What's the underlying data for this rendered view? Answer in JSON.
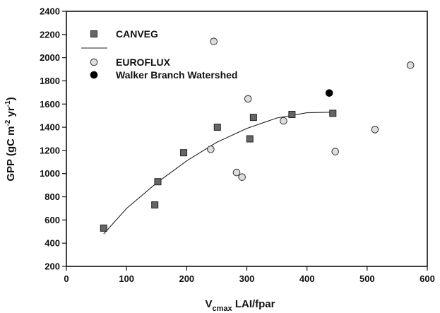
{
  "chart_data": {
    "type": "scatter",
    "xlabel": {
      "main": "V",
      "sub": "cmax",
      "rest": " LAI/fpar"
    },
    "ylabel": {
      "main": "GPP (gC m",
      "sup1": "-2",
      "mid": " yr",
      "sup2": "-1",
      "end": ")"
    },
    "xlim": [
      0,
      600
    ],
    "ylim": [
      200,
      2400
    ],
    "x_ticks": [
      0,
      100,
      200,
      300,
      400,
      500,
      600
    ],
    "y_ticks": [
      200,
      400,
      600,
      800,
      1000,
      1200,
      1400,
      1600,
      1800,
      2000,
      2200,
      2400
    ],
    "grid": false,
    "legend_position": "top-left",
    "series": [
      {
        "name": "CANVEG",
        "marker": "square",
        "color": "#666666",
        "points": [
          {
            "x": 62,
            "y": 530
          },
          {
            "x": 147,
            "y": 730
          },
          {
            "x": 152,
            "y": 930
          },
          {
            "x": 195,
            "y": 1180
          },
          {
            "x": 251,
            "y": 1400
          },
          {
            "x": 305,
            "y": 1300
          },
          {
            "x": 311,
            "y": 1485
          },
          {
            "x": 375,
            "y": 1510
          },
          {
            "x": 443,
            "y": 1520
          }
        ]
      },
      {
        "name": "",
        "marker": "line",
        "color": "#222222",
        "points": [
          {
            "x": 62,
            "y": 480
          },
          {
            "x": 100,
            "y": 700
          },
          {
            "x": 150,
            "y": 920
          },
          {
            "x": 200,
            "y": 1110
          },
          {
            "x": 250,
            "y": 1270
          },
          {
            "x": 300,
            "y": 1390
          },
          {
            "x": 350,
            "y": 1480
          },
          {
            "x": 400,
            "y": 1525
          },
          {
            "x": 440,
            "y": 1530
          }
        ]
      },
      {
        "name": "EUROFLUX",
        "marker": "circle-open",
        "color": "#dddddd",
        "points": [
          {
            "x": 240,
            "y": 1210
          },
          {
            "x": 245,
            "y": 2140
          },
          {
            "x": 283,
            "y": 1010
          },
          {
            "x": 292,
            "y": 970
          },
          {
            "x": 302,
            "y": 1645
          },
          {
            "x": 361,
            "y": 1455
          },
          {
            "x": 447,
            "y": 1190
          },
          {
            "x": 513,
            "y": 1380
          },
          {
            "x": 572,
            "y": 1935
          }
        ]
      },
      {
        "name": "Walker Branch Watershed",
        "marker": "circle-filled",
        "color": "#000000",
        "points": [
          {
            "x": 437,
            "y": 1695
          }
        ]
      }
    ]
  }
}
